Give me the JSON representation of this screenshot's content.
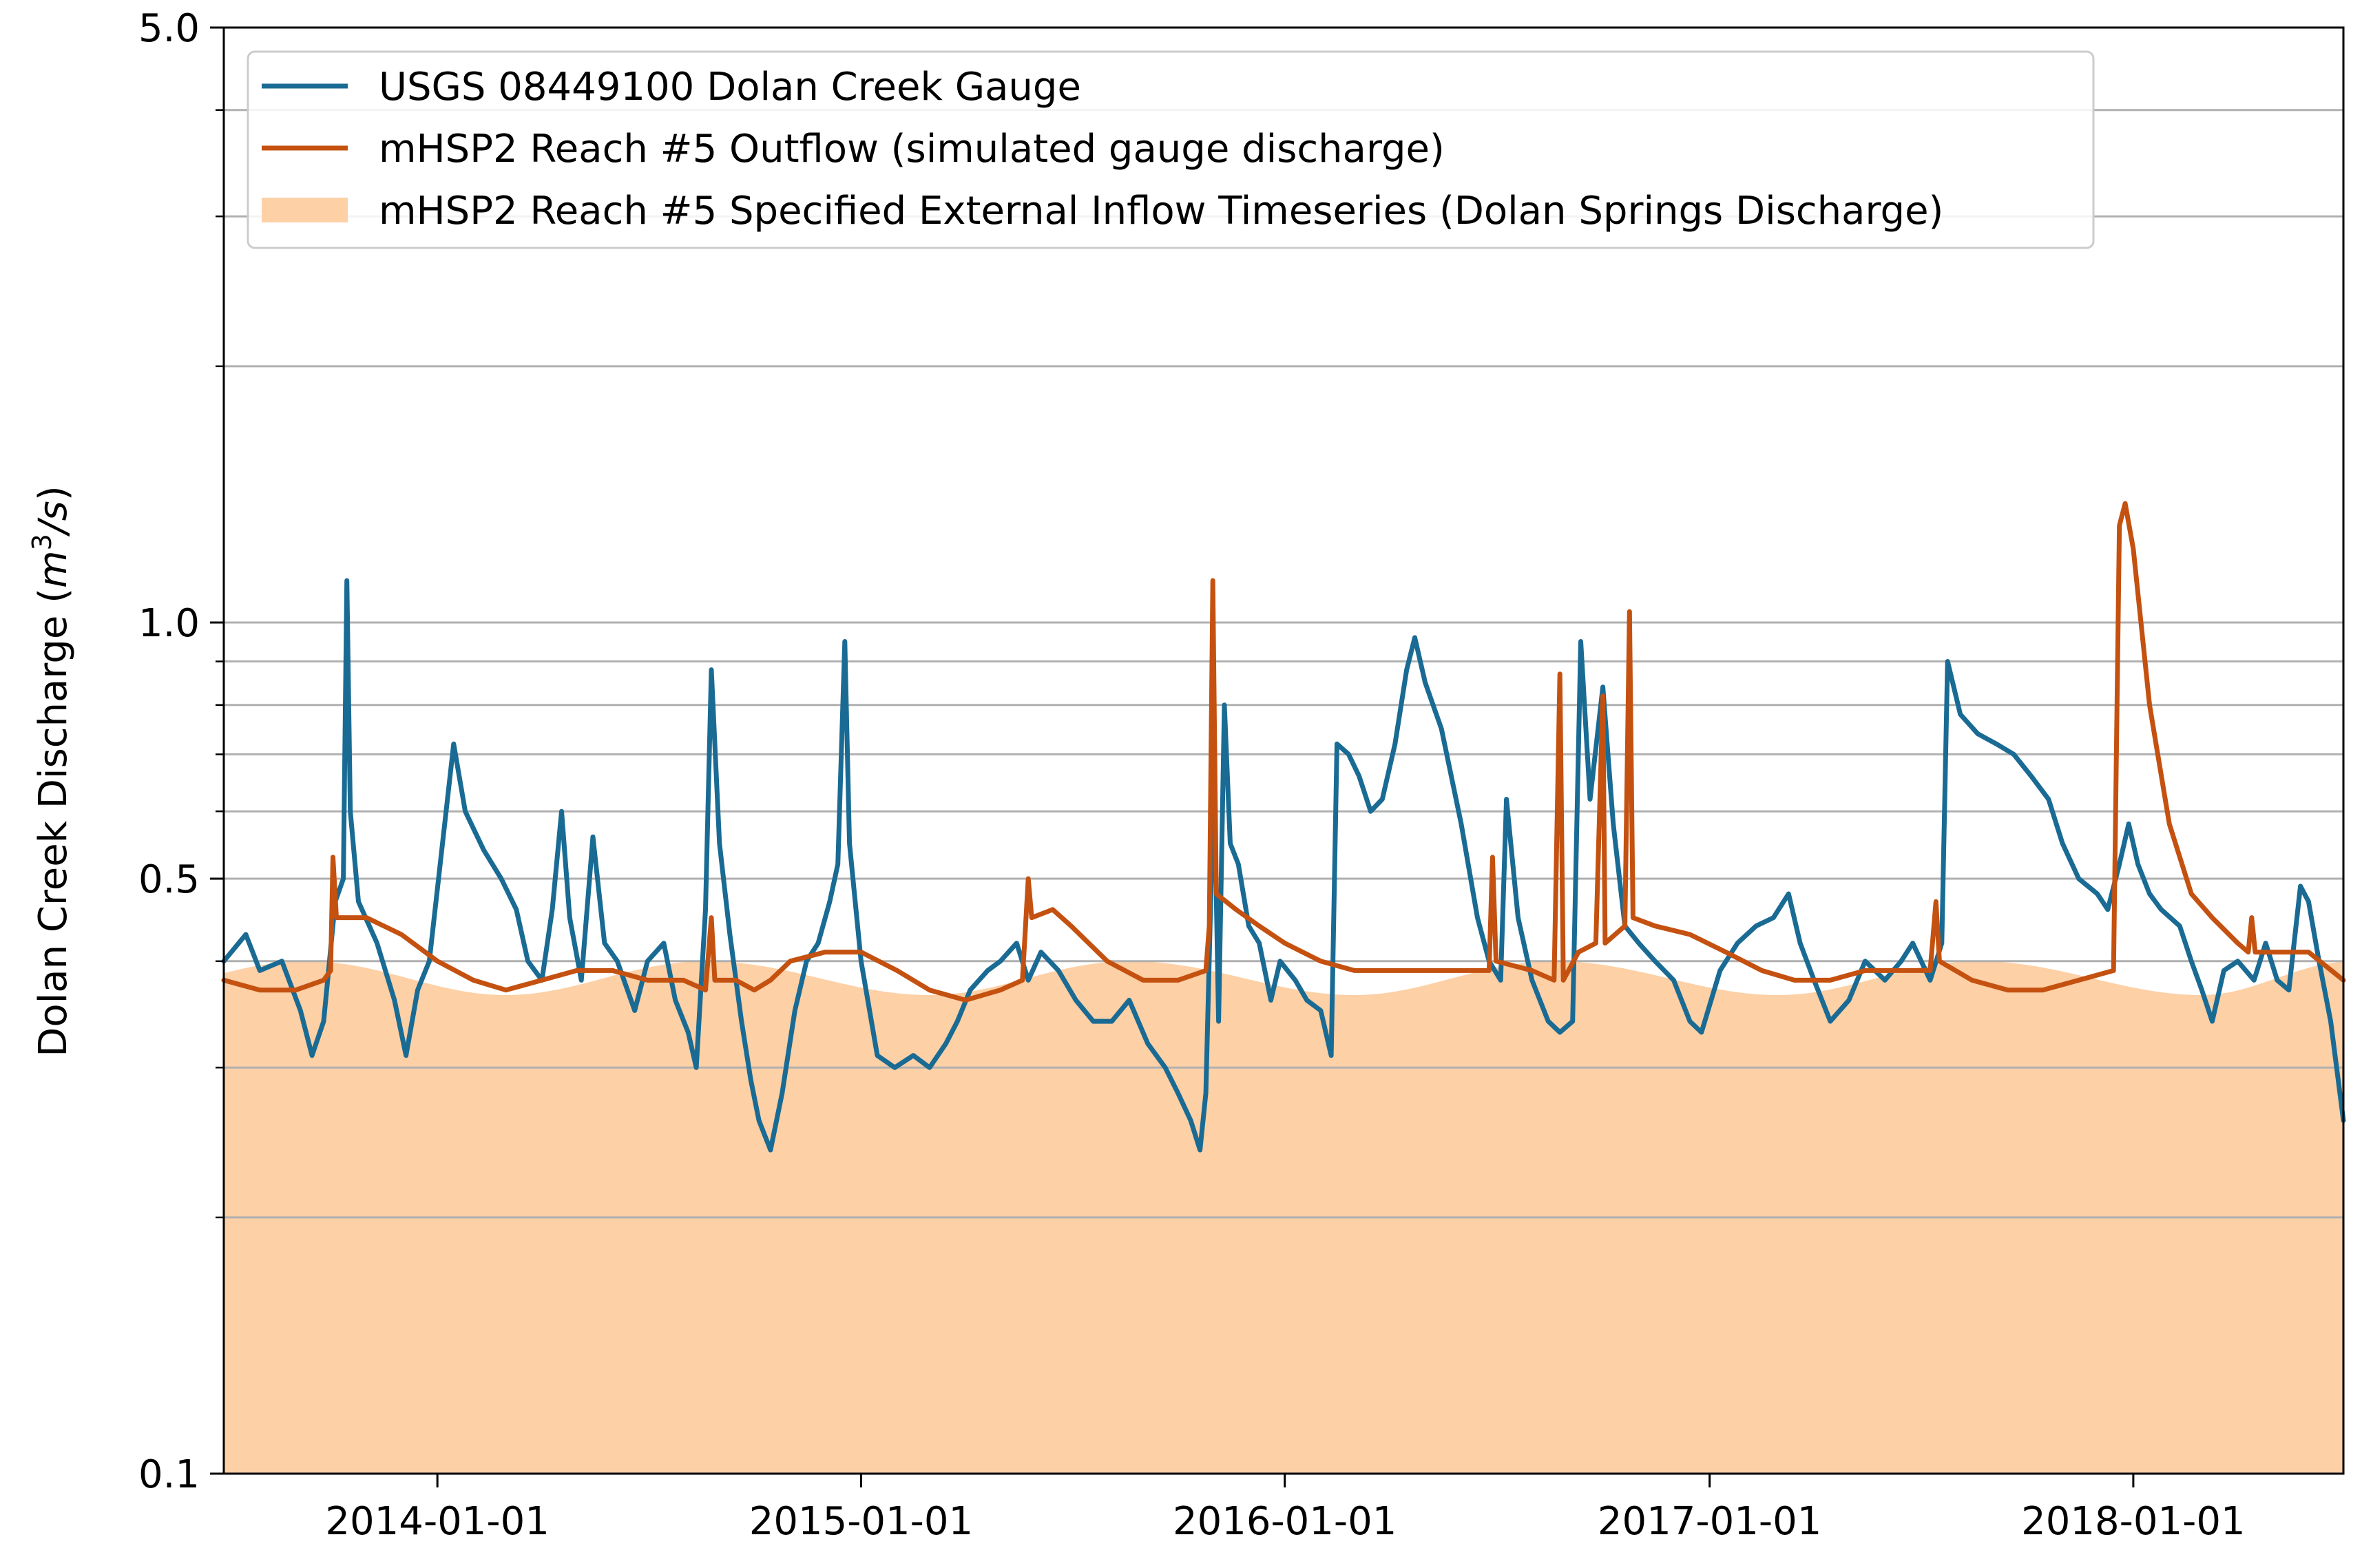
{
  "chart_data": {
    "type": "line",
    "title": "",
    "ylabel_text": "Dolan Creek Discharge (",
    "ylabel_unit_m": "m",
    "ylabel_unit_exp": "3",
    "ylabel_unit_rest": "/s)",
    "ylabel_close": ")",
    "xlabel": "",
    "y_scale": "log",
    "ylim": [
      0.1,
      5.0
    ],
    "xlim": [
      "2013-07-01",
      "2018-07-01"
    ],
    "y_major_ticks": [
      0.1,
      0.5,
      1.0,
      5.0
    ],
    "y_major_tick_labels": [
      "0.1",
      "0.5",
      "1.0",
      "5.0"
    ],
    "y_grid_lines": [
      0.2,
      0.3,
      0.4,
      0.5,
      0.6,
      0.7,
      0.8,
      0.9,
      1.0,
      2.0,
      3.0,
      4.0
    ],
    "x_ticks": [
      "2014-01-01",
      "2015-01-01",
      "2016-01-01",
      "2017-01-01",
      "2018-01-01"
    ],
    "x_tick_labels": [
      "2014-01-01",
      "2015-01-01",
      "2016-01-01",
      "2017-01-01",
      "2018-01-01"
    ],
    "grid": "horizontal",
    "legend_position": "top-left",
    "series": [
      {
        "name": "USGS 08449100 Dolan Creek Gauge",
        "kind": "line",
        "color": "#1a6b94",
        "points": [
          [
            "2013-07-01",
            0.4
          ],
          [
            "2013-07-20",
            0.43
          ],
          [
            "2013-08-01",
            0.39
          ],
          [
            "2013-08-20",
            0.4
          ],
          [
            "2013-09-05",
            0.35
          ],
          [
            "2013-09-15",
            0.31
          ],
          [
            "2013-09-25",
            0.34
          ],
          [
            "2013-10-05",
            0.47
          ],
          [
            "2013-10-12",
            0.5
          ],
          [
            "2013-10-15",
            1.12
          ],
          [
            "2013-10-18",
            0.6
          ],
          [
            "2013-10-25",
            0.47
          ],
          [
            "2013-11-10",
            0.42
          ],
          [
            "2013-11-25",
            0.36
          ],
          [
            "2013-12-05",
            0.31
          ],
          [
            "2013-12-15",
            0.37
          ],
          [
            "2013-12-25",
            0.4
          ],
          [
            "2014-01-15",
            0.72
          ],
          [
            "2014-01-25",
            0.6
          ],
          [
            "2014-02-10",
            0.54
          ],
          [
            "2014-02-25",
            0.5
          ],
          [
            "2014-03-10",
            0.46
          ],
          [
            "2014-03-20",
            0.4
          ],
          [
            "2014-04-01",
            0.38
          ],
          [
            "2014-04-10",
            0.46
          ],
          [
            "2014-04-18",
            0.6
          ],
          [
            "2014-04-25",
            0.45
          ],
          [
            "2014-05-05",
            0.38
          ],
          [
            "2014-05-15",
            0.56
          ],
          [
            "2014-05-25",
            0.42
          ],
          [
            "2014-06-05",
            0.4
          ],
          [
            "2014-06-20",
            0.35
          ],
          [
            "2014-07-01",
            0.4
          ],
          [
            "2014-07-15",
            0.42
          ],
          [
            "2014-07-25",
            0.36
          ],
          [
            "2014-08-05",
            0.33
          ],
          [
            "2014-08-12",
            0.3
          ],
          [
            "2014-08-20",
            0.46
          ],
          [
            "2014-08-25",
            0.88
          ],
          [
            "2014-09-01",
            0.55
          ],
          [
            "2014-09-10",
            0.43
          ],
          [
            "2014-09-20",
            0.34
          ],
          [
            "2014-09-28",
            0.29
          ],
          [
            "2014-10-05",
            0.26
          ],
          [
            "2014-10-15",
            0.24
          ],
          [
            "2014-10-25",
            0.28
          ],
          [
            "2014-11-05",
            0.35
          ],
          [
            "2014-11-15",
            0.4
          ],
          [
            "2014-11-25",
            0.42
          ],
          [
            "2014-12-05",
            0.47
          ],
          [
            "2014-12-12",
            0.52
          ],
          [
            "2014-12-18",
            0.95
          ],
          [
            "2014-12-22",
            0.55
          ],
          [
            "2015-01-01",
            0.4
          ],
          [
            "2015-01-15",
            0.31
          ],
          [
            "2015-01-30",
            0.3
          ],
          [
            "2015-02-15",
            0.31
          ],
          [
            "2015-03-01",
            0.3
          ],
          [
            "2015-03-15",
            0.32
          ],
          [
            "2015-03-25",
            0.34
          ],
          [
            "2015-04-05",
            0.37
          ],
          [
            "2015-04-20",
            0.39
          ],
          [
            "2015-05-01",
            0.4
          ],
          [
            "2015-05-15",
            0.42
          ],
          [
            "2015-05-25",
            0.38
          ],
          [
            "2015-06-05",
            0.41
          ],
          [
            "2015-06-20",
            0.39
          ],
          [
            "2015-07-05",
            0.36
          ],
          [
            "2015-07-20",
            0.34
          ],
          [
            "2015-08-05",
            0.34
          ],
          [
            "2015-08-20",
            0.36
          ],
          [
            "2015-09-05",
            0.32
          ],
          [
            "2015-09-20",
            0.3
          ],
          [
            "2015-10-01",
            0.28
          ],
          [
            "2015-10-12",
            0.26
          ],
          [
            "2015-10-20",
            0.24
          ],
          [
            "2015-10-25",
            0.28
          ],
          [
            "2015-11-01",
            0.67
          ],
          [
            "2015-11-05",
            0.34
          ],
          [
            "2015-11-10",
            0.8
          ],
          [
            "2015-11-15",
            0.55
          ],
          [
            "2015-11-22",
            0.52
          ],
          [
            "2015-12-01",
            0.44
          ],
          [
            "2015-12-10",
            0.42
          ],
          [
            "2015-12-20",
            0.36
          ],
          [
            "2015-12-28",
            0.4
          ],
          [
            "2016-01-10",
            0.38
          ],
          [
            "2016-01-20",
            0.36
          ],
          [
            "2016-02-01",
            0.35
          ],
          [
            "2016-02-10",
            0.31
          ],
          [
            "2016-02-15",
            0.72
          ],
          [
            "2016-02-25",
            0.7
          ],
          [
            "2016-03-05",
            0.66
          ],
          [
            "2016-03-15",
            0.6
          ],
          [
            "2016-03-25",
            0.62
          ],
          [
            "2016-04-05",
            0.72
          ],
          [
            "2016-04-15",
            0.88
          ],
          [
            "2016-04-22",
            0.96
          ],
          [
            "2016-05-01",
            0.85
          ],
          [
            "2016-05-15",
            0.75
          ],
          [
            "2016-06-01",
            0.58
          ],
          [
            "2016-06-15",
            0.45
          ],
          [
            "2016-06-25",
            0.4
          ],
          [
            "2016-07-05",
            0.38
          ],
          [
            "2016-07-10",
            0.62
          ],
          [
            "2016-07-20",
            0.45
          ],
          [
            "2016-08-01",
            0.38
          ],
          [
            "2016-08-15",
            0.34
          ],
          [
            "2016-08-25",
            0.33
          ],
          [
            "2016-09-05",
            0.34
          ],
          [
            "2016-09-12",
            0.95
          ],
          [
            "2016-09-20",
            0.62
          ],
          [
            "2016-10-01",
            0.84
          ],
          [
            "2016-10-10",
            0.58
          ],
          [
            "2016-10-20",
            0.44
          ],
          [
            "2016-11-01",
            0.42
          ],
          [
            "2016-11-15",
            0.4
          ],
          [
            "2016-12-01",
            0.38
          ],
          [
            "2016-12-15",
            0.34
          ],
          [
            "2016-12-25",
            0.33
          ],
          [
            "2017-01-10",
            0.39
          ],
          [
            "2017-01-25",
            0.42
          ],
          [
            "2017-02-10",
            0.44
          ],
          [
            "2017-02-25",
            0.45
          ],
          [
            "2017-03-10",
            0.48
          ],
          [
            "2017-03-20",
            0.42
          ],
          [
            "2017-04-01",
            0.38
          ],
          [
            "2017-04-15",
            0.34
          ],
          [
            "2017-05-01",
            0.36
          ],
          [
            "2017-05-15",
            0.4
          ],
          [
            "2017-06-01",
            0.38
          ],
          [
            "2017-06-15",
            0.4
          ],
          [
            "2017-06-25",
            0.42
          ],
          [
            "2017-07-10",
            0.38
          ],
          [
            "2017-07-20",
            0.42
          ],
          [
            "2017-07-25",
            0.9
          ],
          [
            "2017-08-05",
            0.78
          ],
          [
            "2017-08-20",
            0.74
          ],
          [
            "2017-09-05",
            0.72
          ],
          [
            "2017-09-20",
            0.7
          ],
          [
            "2017-10-05",
            0.66
          ],
          [
            "2017-10-20",
            0.62
          ],
          [
            "2017-11-01",
            0.55
          ],
          [
            "2017-11-15",
            0.5
          ],
          [
            "2017-12-01",
            0.48
          ],
          [
            "2017-12-10",
            0.46
          ],
          [
            "2017-12-20",
            0.52
          ],
          [
            "2017-12-28",
            0.58
          ],
          [
            "2018-01-05",
            0.52
          ],
          [
            "2018-01-15",
            0.48
          ],
          [
            "2018-01-25",
            0.46
          ],
          [
            "2018-02-10",
            0.44
          ],
          [
            "2018-02-20",
            0.4
          ],
          [
            "2018-03-01",
            0.37
          ],
          [
            "2018-03-10",
            0.34
          ],
          [
            "2018-03-20",
            0.39
          ],
          [
            "2018-04-01",
            0.4
          ],
          [
            "2018-04-15",
            0.38
          ],
          [
            "2018-04-25",
            0.42
          ],
          [
            "2018-05-05",
            0.38
          ],
          [
            "2018-05-15",
            0.37
          ],
          [
            "2018-05-25",
            0.49
          ],
          [
            "2018-06-01",
            0.47
          ],
          [
            "2018-06-10",
            0.4
          ],
          [
            "2018-06-20",
            0.34
          ],
          [
            "2018-07-01",
            0.26
          ]
        ]
      },
      {
        "name": "mHSP2 Reach #5 Outflow (simulated gauge discharge)",
        "kind": "line",
        "color": "#c45110",
        "points": [
          [
            "2013-07-01",
            0.38
          ],
          [
            "2013-08-01",
            0.37
          ],
          [
            "2013-09-01",
            0.37
          ],
          [
            "2013-09-25",
            0.38
          ],
          [
            "2013-10-01",
            0.39
          ],
          [
            "2013-10-03",
            0.53
          ],
          [
            "2013-10-06",
            0.45
          ],
          [
            "2013-11-01",
            0.45
          ],
          [
            "2013-12-01",
            0.43
          ],
          [
            "2014-01-01",
            0.4
          ],
          [
            "2014-02-01",
            0.38
          ],
          [
            "2014-03-01",
            0.37
          ],
          [
            "2014-04-01",
            0.38
          ],
          [
            "2014-05-01",
            0.39
          ],
          [
            "2014-06-01",
            0.39
          ],
          [
            "2014-07-01",
            0.38
          ],
          [
            "2014-08-01",
            0.38
          ],
          [
            "2014-08-20",
            0.37
          ],
          [
            "2014-08-25",
            0.45
          ],
          [
            "2014-08-28",
            0.38
          ],
          [
            "2014-09-15",
            0.38
          ],
          [
            "2014-10-01",
            0.37
          ],
          [
            "2014-10-15",
            0.38
          ],
          [
            "2014-11-01",
            0.4
          ],
          [
            "2014-12-01",
            0.41
          ],
          [
            "2015-01-01",
            0.41
          ],
          [
            "2015-02-01",
            0.39
          ],
          [
            "2015-03-01",
            0.37
          ],
          [
            "2015-04-01",
            0.36
          ],
          [
            "2015-05-01",
            0.37
          ],
          [
            "2015-05-20",
            0.38
          ],
          [
            "2015-05-25",
            0.5
          ],
          [
            "2015-05-28",
            0.45
          ],
          [
            "2015-06-15",
            0.46
          ],
          [
            "2015-07-01",
            0.44
          ],
          [
            "2015-08-01",
            0.4
          ],
          [
            "2015-09-01",
            0.38
          ],
          [
            "2015-10-01",
            0.38
          ],
          [
            "2015-10-25",
            0.39
          ],
          [
            "2015-10-28",
            0.44
          ],
          [
            "2015-10-31",
            1.12
          ],
          [
            "2015-11-03",
            0.48
          ],
          [
            "2015-11-20",
            0.46
          ],
          [
            "2015-12-10",
            0.44
          ],
          [
            "2016-01-01",
            0.42
          ],
          [
            "2016-02-01",
            0.4
          ],
          [
            "2016-03-01",
            0.39
          ],
          [
            "2016-04-01",
            0.39
          ],
          [
            "2016-05-01",
            0.39
          ],
          [
            "2016-06-01",
            0.39
          ],
          [
            "2016-06-25",
            0.39
          ],
          [
            "2016-06-28",
            0.53
          ],
          [
            "2016-07-01",
            0.4
          ],
          [
            "2016-08-01",
            0.39
          ],
          [
            "2016-08-20",
            0.38
          ],
          [
            "2016-08-25",
            0.87
          ],
          [
            "2016-08-28",
            0.38
          ],
          [
            "2016-09-10",
            0.41
          ],
          [
            "2016-09-25",
            0.42
          ],
          [
            "2016-10-01",
            0.82
          ],
          [
            "2016-10-03",
            0.42
          ],
          [
            "2016-10-20",
            0.44
          ],
          [
            "2016-10-24",
            1.03
          ],
          [
            "2016-10-27",
            0.45
          ],
          [
            "2016-11-15",
            0.44
          ],
          [
            "2016-12-15",
            0.43
          ],
          [
            "2017-01-15",
            0.41
          ],
          [
            "2017-02-15",
            0.39
          ],
          [
            "2017-03-15",
            0.38
          ],
          [
            "2017-04-15",
            0.38
          ],
          [
            "2017-05-15",
            0.39
          ],
          [
            "2017-06-15",
            0.39
          ],
          [
            "2017-07-10",
            0.39
          ],
          [
            "2017-07-15",
            0.47
          ],
          [
            "2017-07-18",
            0.4
          ],
          [
            "2017-08-15",
            0.38
          ],
          [
            "2017-09-15",
            0.37
          ],
          [
            "2017-10-15",
            0.37
          ],
          [
            "2017-11-15",
            0.38
          ],
          [
            "2017-12-15",
            0.39
          ],
          [
            "2017-12-20",
            1.3
          ],
          [
            "2017-12-25",
            1.38
          ],
          [
            "2018-01-01",
            1.22
          ],
          [
            "2018-01-15",
            0.8
          ],
          [
            "2018-02-01",
            0.58
          ],
          [
            "2018-02-20",
            0.48
          ],
          [
            "2018-03-10",
            0.45
          ],
          [
            "2018-04-01",
            0.42
          ],
          [
            "2018-04-10",
            0.41
          ],
          [
            "2018-04-13",
            0.45
          ],
          [
            "2018-04-16",
            0.41
          ],
          [
            "2018-05-01",
            0.41
          ],
          [
            "2018-06-01",
            0.41
          ],
          [
            "2018-07-01",
            0.38
          ]
        ]
      },
      {
        "name": "mHSP2 Reach #5 Specified External Inflow Timeseries (Dolan Springs Discharge)",
        "kind": "area",
        "color": "#fdd0a6",
        "seasonal_min": 0.365,
        "seasonal_max": 0.4,
        "seasonal_peak_dates": [
          "2013-09-10",
          "2014-08-20",
          "2015-08-20",
          "2016-08-20",
          "2017-08-20",
          "2018-07-10"
        ],
        "seasonal_trough_dates": [
          "2014-03-01",
          "2015-03-01",
          "2016-03-01",
          "2017-03-01",
          "2018-03-01"
        ]
      }
    ]
  }
}
